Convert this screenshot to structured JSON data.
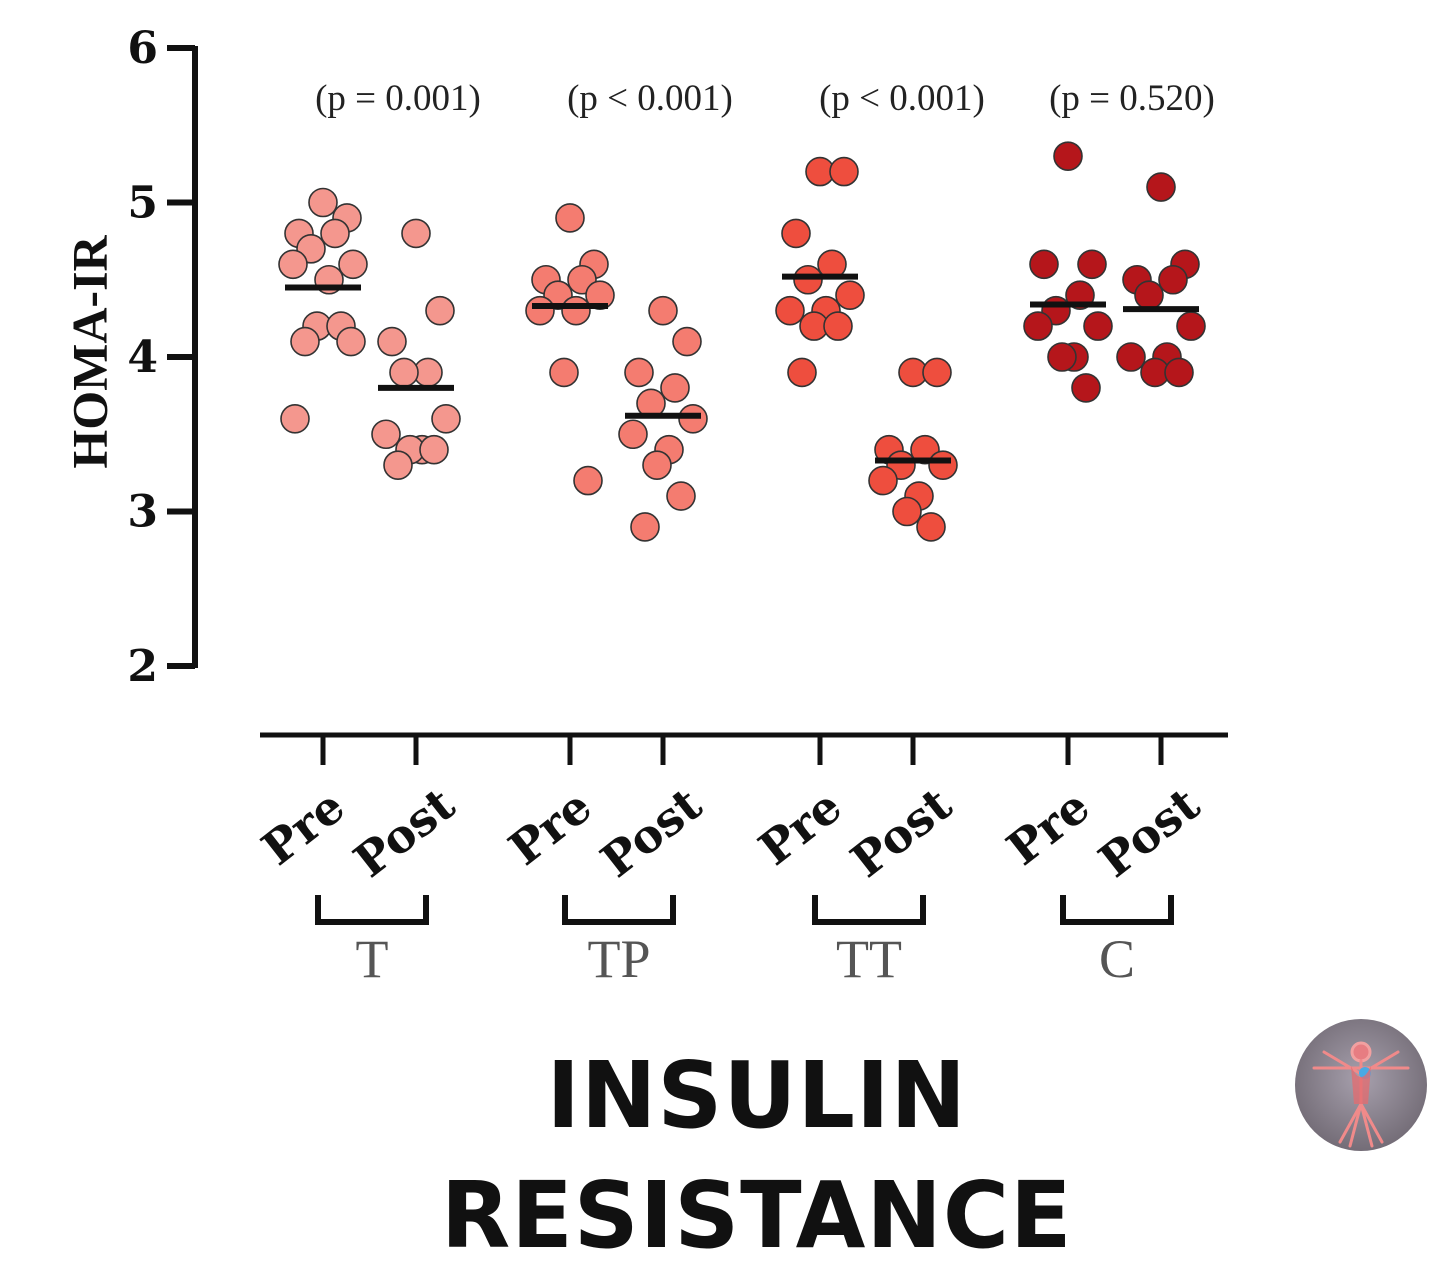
{
  "chart_data": {
    "type": "scatter",
    "ylabel": "HOMA-IR",
    "ylim": [
      2,
      6
    ],
    "yticks": [
      "2",
      "3",
      "4",
      "5",
      "6"
    ],
    "conditions": [
      "Pre",
      "Post"
    ],
    "groups": [
      {
        "name": "T",
        "color": "#F4978E",
        "p_label": "(p = 0.001)",
        "pre": {
          "mean": 4.45,
          "values": [
            5.0,
            4.9,
            4.8,
            4.8,
            4.7,
            4.6,
            4.6,
            4.5,
            4.2,
            4.2,
            4.1,
            4.1,
            3.6
          ]
        },
        "post": {
          "mean": 3.8,
          "values": [
            4.8,
            4.3,
            4.1,
            3.9,
            3.9,
            3.6,
            3.5,
            3.4,
            3.4,
            3.4,
            3.3
          ]
        }
      },
      {
        "name": "TP",
        "color": "#F47C70",
        "p_label": "(p < 0.001)",
        "pre": {
          "mean": 4.33,
          "values": [
            4.9,
            4.6,
            4.5,
            4.5,
            4.4,
            4.4,
            4.3,
            4.3,
            3.9,
            3.2
          ]
        },
        "post": {
          "mean": 3.62,
          "values": [
            4.3,
            4.1,
            3.9,
            3.8,
            3.7,
            3.6,
            3.5,
            3.4,
            3.3,
            3.1,
            2.9
          ]
        }
      },
      {
        "name": "TT",
        "color": "#EE4E3E",
        "p_label": "(p < 0.001)",
        "pre": {
          "mean": 4.52,
          "values": [
            5.2,
            5.2,
            4.8,
            4.6,
            4.5,
            4.4,
            4.3,
            4.3,
            4.2,
            4.2,
            3.9
          ]
        },
        "post": {
          "mean": 3.33,
          "values": [
            3.9,
            3.9,
            3.4,
            3.4,
            3.3,
            3.3,
            3.2,
            3.1,
            3.0,
            2.9
          ]
        }
      },
      {
        "name": "C",
        "color": "#B5161B",
        "p_label": "(p = 0.520)",
        "pre": {
          "mean": 4.34,
          "values": [
            5.3,
            4.6,
            4.6,
            4.4,
            4.3,
            4.2,
            4.2,
            4.0,
            4.0,
            3.8
          ]
        },
        "post": {
          "mean": 4.31,
          "values": [
            5.1,
            4.6,
            4.5,
            4.5,
            4.4,
            4.2,
            4.0,
            4.0,
            3.9,
            3.9
          ]
        }
      }
    ]
  },
  "banner": {
    "title": "INSULIN RESISTANCE"
  },
  "logo": {
    "icon": "vitruvian-man-icon"
  }
}
